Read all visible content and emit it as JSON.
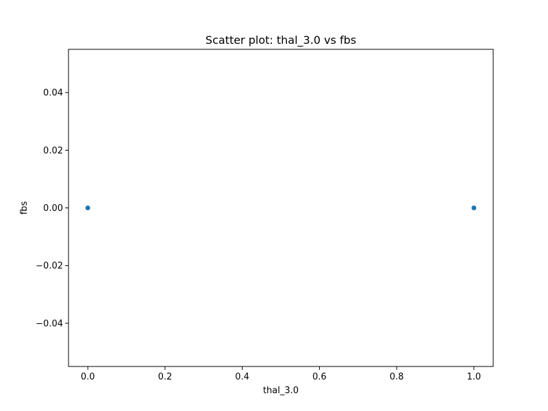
{
  "chart_data": {
    "type": "scatter",
    "title": "Scatter plot: thal_3.0 vs fbs",
    "xlabel": "thal_3.0",
    "ylabel": "fbs",
    "xlim": [
      -0.05,
      1.05
    ],
    "ylim": [
      -0.055,
      0.055
    ],
    "xticks": [
      0.0,
      0.2,
      0.4,
      0.6,
      0.8,
      1.0
    ],
    "xtick_labels": [
      "0.0",
      "0.2",
      "0.4",
      "0.6",
      "0.8",
      "1.0"
    ],
    "yticks": [
      -0.04,
      -0.02,
      0.0,
      0.02,
      0.04
    ],
    "ytick_labels": [
      "−0.04",
      "−0.02",
      "0.00",
      "0.02",
      "0.04"
    ],
    "grid": false,
    "series": [
      {
        "x": [
          0.0,
          1.0
        ],
        "y": [
          0.0,
          0.0
        ],
        "color": "#1f77b4"
      }
    ]
  }
}
